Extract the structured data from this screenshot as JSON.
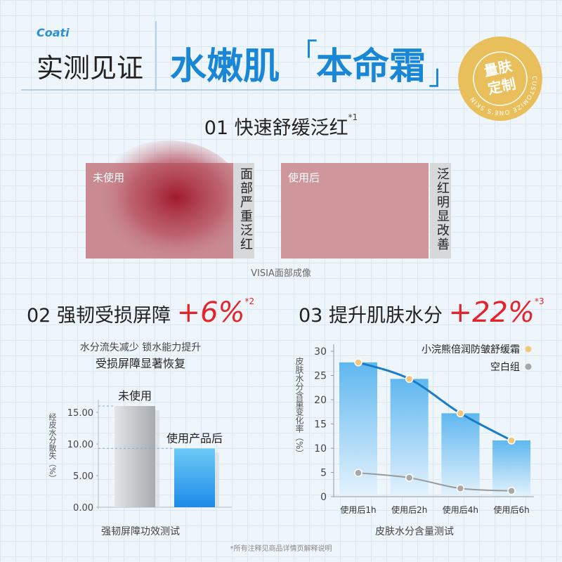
{
  "logo": "Coati",
  "header": {
    "left_title": "实测见证",
    "title_left": "水嫩肌",
    "bracket_open": "「",
    "title_right": "本命霜",
    "bracket_close": "」",
    "badge_line1": "量肤",
    "badge_line2": "定制",
    "badge_ring": "CUSTOMIZE ONE'S SKIN"
  },
  "section1": {
    "number": "01",
    "title": "快速舒缓泛红",
    "note": "*1",
    "before_label": "未使用",
    "before_caption": "面部严重泛红",
    "after_label": "使用后",
    "after_caption": "泛红明显改善",
    "caption": "VISIA面部成像"
  },
  "section2": {
    "number": "02",
    "title": "强韧受损屏障",
    "highlight": "+6%",
    "note": "*2",
    "sub1": "水分流失减少 锁水能力提升",
    "sub2": "受损屏障显著恢复"
  },
  "section3": {
    "number": "03",
    "title": "提升肌肤水分",
    "highlight": "+22%",
    "note": "*3"
  },
  "footnote": "*所有注释见商品详情页解释说明",
  "chart_data": [
    {
      "type": "bar",
      "categories": [
        "未使用",
        "使用产品后"
      ],
      "values": [
        16,
        9.3
      ],
      "colors": [
        "#b4b8bc",
        "#2a98ec"
      ],
      "y_label": "经皮水分散失（%）",
      "x_label": "强韧屏障功效测试",
      "ylim": [
        0,
        17
      ],
      "yticks": [
        {
          "value": 0,
          "label": "0.00"
        },
        {
          "value": 5,
          "label": "5.00"
        },
        {
          "value": 10,
          "label": "10.00"
        },
        {
          "value": 15,
          "label": "15.00"
        }
      ]
    },
    {
      "type": "line",
      "categories": [
        "使用后1h",
        "使用后2h",
        "使用后4h",
        "使用后6h"
      ],
      "series": [
        {
          "name": "小浣熊倍润防皱舒缓霜",
          "color": "#1a7cc9",
          "marker_color": "#f3c77a",
          "values": [
            27.7,
            24.3,
            17.2,
            11.6
          ]
        },
        {
          "name": "空白组",
          "color": "#9a9a9a",
          "marker_color": "#a8a8a8",
          "values": [
            4.9,
            3.9,
            1.7,
            1.2
          ]
        }
      ],
      "y_label": "皮肤水分含量变化率（%）",
      "x_label": "皮肤水分含量测试",
      "ylim": [
        0,
        30
      ],
      "yticks": [
        0,
        5,
        10,
        15,
        20,
        25,
        30
      ]
    }
  ]
}
